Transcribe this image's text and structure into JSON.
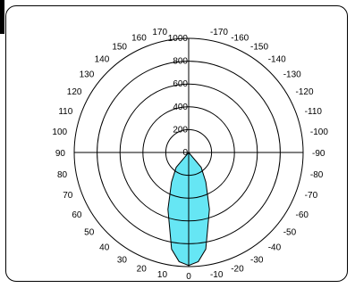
{
  "chart_data": {
    "type": "polar",
    "title": "",
    "radial_axis": {
      "range": [
        0,
        1000
      ],
      "ticks": [
        "0",
        "200",
        "400",
        "600",
        "800",
        "1000"
      ]
    },
    "angle_axis": {
      "unit": "deg",
      "left_labels": [
        "0",
        "10",
        "20",
        "30",
        "40",
        "50",
        "60",
        "70",
        "80",
        "90",
        "100",
        "110",
        "120",
        "130",
        "140",
        "150",
        "160",
        "170"
      ],
      "right_labels": [
        "-10",
        "-20",
        "-30",
        "-40",
        "-50",
        "-60",
        "-70",
        "-80",
        "-90",
        "-100",
        "-110",
        "-120",
        "-130",
        "-140",
        "-150",
        "-160",
        "-170"
      ]
    },
    "grid": true,
    "series": [
      {
        "fill": "#66e6f4",
        "angles": [
          -180,
          -150,
          -120,
          -90,
          -60,
          -40,
          -30,
          -20,
          -10,
          -5,
          0,
          5,
          10,
          20,
          30,
          40,
          60,
          90,
          120,
          150,
          180
        ],
        "values": [
          0,
          0,
          0,
          0,
          0,
          170,
          300,
          530,
          860,
          960,
          990,
          960,
          860,
          530,
          300,
          170,
          0,
          0,
          0,
          0,
          0
        ]
      }
    ]
  },
  "colors": {
    "fill": "#66e6f4",
    "stroke": "#000000"
  }
}
